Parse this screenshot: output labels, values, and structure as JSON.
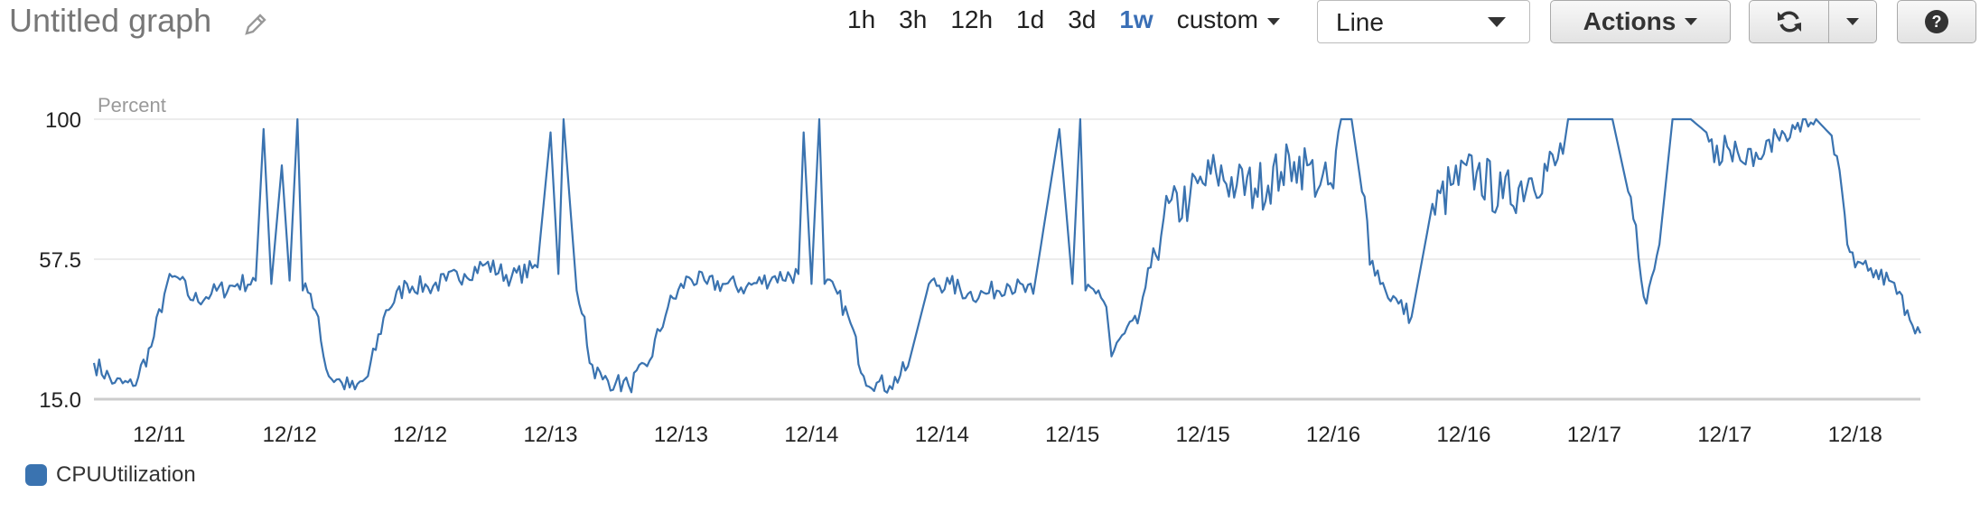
{
  "header": {
    "title": "Untitled graph",
    "ranges": [
      "1h",
      "3h",
      "12h",
      "1d",
      "3d",
      "1w",
      "custom"
    ],
    "active_range": "1w",
    "chart_type_select": "Line",
    "actions_label": "Actions",
    "refresh_icon": "refresh-icon",
    "help_icon": "help-icon",
    "edit_icon": "pencil-icon"
  },
  "legend": {
    "label": "CPUUtilization",
    "color": "#3a73b0"
  },
  "chart_data": {
    "type": "line",
    "ylabel": "Percent",
    "yticks": [
      100,
      57.5,
      15.0
    ],
    "ytick_labels": [
      "100",
      "57.5",
      "15.0"
    ],
    "ylim": [
      15,
      100
    ],
    "xlim": [
      0,
      7
    ],
    "xtick_labels": [
      "12/11",
      "12/12",
      "12/12",
      "12/13",
      "12/13",
      "12/14",
      "12/14",
      "12/15",
      "12/15",
      "12/16",
      "12/16",
      "12/17",
      "12/17",
      "12/18"
    ],
    "xtick_positions": [
      0.25,
      0.75,
      1.25,
      1.75,
      2.25,
      2.75,
      3.25,
      3.75,
      4.25,
      4.75,
      5.25,
      5.75,
      6.25,
      6.75
    ],
    "series": [
      {
        "name": "CPUUtilization",
        "color": "#3a73b0",
        "x": [
          0.0,
          0.08,
          0.15,
          0.22,
          0.28,
          0.32,
          0.38,
          0.45,
          0.55,
          0.62,
          0.65,
          0.68,
          0.72,
          0.75,
          0.78,
          0.8,
          0.83,
          0.86,
          0.88,
          0.9,
          0.95,
          1.0,
          1.05,
          1.12,
          1.2,
          1.28,
          1.35,
          1.42,
          1.5,
          1.6,
          1.7,
          1.75,
          1.78,
          1.8,
          1.85,
          1.88,
          1.9,
          1.95,
          2.0,
          2.05,
          2.12,
          2.2,
          2.28,
          2.35,
          2.42,
          2.5,
          2.6,
          2.7,
          2.72,
          2.75,
          2.78,
          2.8,
          2.85,
          2.9,
          2.95,
          3.0,
          3.05,
          3.12,
          3.2,
          3.28,
          3.35,
          3.42,
          3.5,
          3.6,
          3.7,
          3.75,
          3.78,
          3.8,
          3.85,
          3.88,
          3.9,
          3.95,
          4.0,
          4.02,
          4.05,
          4.1,
          4.2,
          4.3,
          4.38,
          4.45,
          4.55,
          4.6,
          4.65,
          4.7,
          4.75,
          4.78,
          4.8,
          4.82,
          4.86,
          4.9,
          4.95,
          5.0,
          5.05,
          5.12,
          5.2,
          5.3,
          5.4,
          5.5,
          5.6,
          5.68,
          5.75,
          5.82,
          5.88,
          5.92,
          5.95,
          6.0,
          6.05,
          6.12,
          6.18,
          6.22,
          6.25,
          6.3,
          6.38,
          6.45,
          6.52,
          6.6,
          6.66,
          6.7,
          6.72,
          6.75,
          6.8,
          6.88,
          6.95,
          7.0
        ],
        "y": [
          26,
          20,
          19,
          31,
          50,
          52,
          45,
          47,
          50,
          51,
          97,
          50,
          86,
          51,
          100,
          48,
          47,
          40,
          28,
          22,
          20,
          18,
          22,
          42,
          50,
          49,
          51,
          53,
          56,
          52,
          55,
          96,
          53,
          100,
          48,
          40,
          26,
          21,
          20,
          19,
          25,
          43,
          52,
          50,
          50,
          49,
          52,
          53,
          96,
          50,
          100,
          50,
          47,
          38,
          22,
          20,
          19,
          25,
          50,
          50,
          47,
          47,
          50,
          47,
          97,
          50,
          100,
          48,
          48,
          43,
          28,
          35,
          38,
          46,
          55,
          70,
          76,
          84,
          80,
          79,
          84,
          87,
          86,
          80,
          79,
          100,
          100,
          100,
          78,
          57,
          48,
          44,
          40,
          70,
          80,
          84,
          76,
          82,
          86,
          100,
          100,
          100,
          78,
          58,
          44,
          62,
          100,
          100,
          96,
          92,
          95,
          90,
          88,
          95,
          97,
          100,
          95,
          78,
          62,
          55,
          54,
          51,
          42,
          35
        ]
      }
    ]
  }
}
